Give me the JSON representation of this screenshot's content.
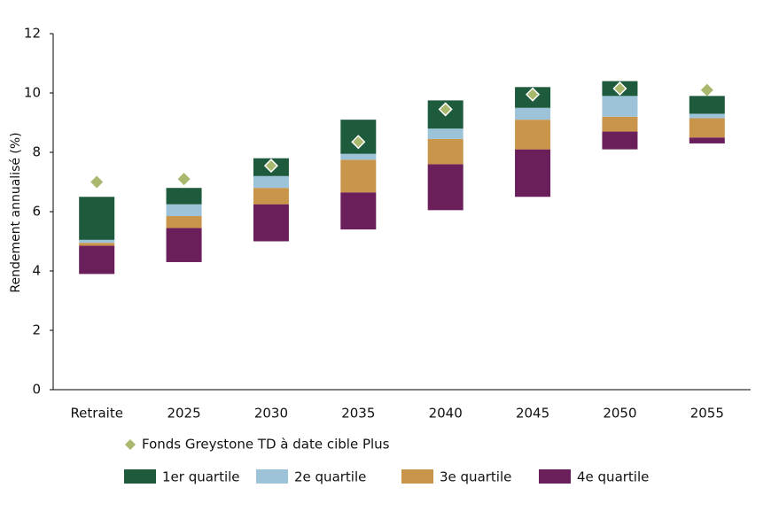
{
  "chart_data": {
    "type": "floating-stacked-bar",
    "y_label": "Rendement annualisé (%)",
    "categories": [
      "Retraite",
      "2025",
      "2030",
      "2035",
      "2040",
      "2045",
      "2050",
      "2055"
    ],
    "base": [
      3.9,
      4.3,
      5.0,
      5.4,
      6.05,
      6.5,
      8.1,
      8.3
    ],
    "series": [
      {
        "name": "1er quartile",
        "color": "#1e5a3c",
        "values": [
          1.45,
          0.55,
          0.6,
          1.15,
          0.95,
          0.7,
          0.5,
          0.6
        ]
      },
      {
        "name": "2e quartile",
        "color": "#9dc3d9",
        "values": [
          0.1,
          0.4,
          0.4,
          0.2,
          0.35,
          0.4,
          0.7,
          0.15
        ]
      },
      {
        "name": "3e quartile",
        "color": "#c9954a",
        "values": [
          0.1,
          0.4,
          0.55,
          1.1,
          0.85,
          1.0,
          0.5,
          0.65
        ]
      },
      {
        "name": "4e quartile",
        "color": "#6b1f5a",
        "values": [
          0.95,
          1.15,
          1.25,
          1.25,
          1.55,
          1.6,
          0.6,
          0.2
        ]
      }
    ],
    "markers": {
      "name": "Fonds Greystone TD à date cible Plus",
      "color": "#a8b86c",
      "values": [
        7.0,
        7.1,
        7.55,
        8.35,
        9.45,
        9.95,
        10.15,
        10.1
      ]
    },
    "ylim": [
      0,
      12
    ],
    "yticks": [
      0,
      2,
      4,
      6,
      8,
      10,
      12
    ]
  }
}
